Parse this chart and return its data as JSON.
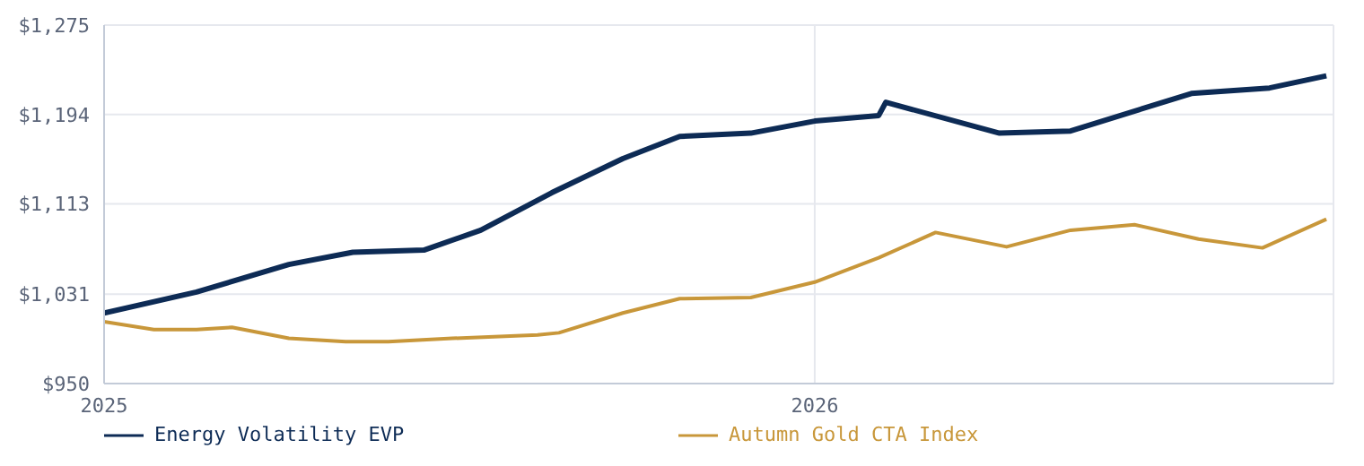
{
  "chart_data": {
    "type": "line",
    "xlim": [
      2025,
      2026.73
    ],
    "xticks": [
      2025,
      2026
    ],
    "ylim": [
      950,
      1275
    ],
    "yticks": [
      {
        "value": 950,
        "label": "$950"
      },
      {
        "value": 1031,
        "label": "$1,031"
      },
      {
        "value": 1113,
        "label": "$1,113"
      },
      {
        "value": 1194,
        "label": "$1,194"
      },
      {
        "value": 1275,
        "label": "$1,275"
      }
    ],
    "grid": true,
    "legend": "bottom",
    "marker": "none",
    "line_style": "solid",
    "series": [
      {
        "name": "Energy Volatility EVP",
        "color": "#0d2b55",
        "x": [
          2025.0,
          2025.13,
          2025.26,
          2025.35,
          2025.45,
          2025.53,
          2025.63,
          2025.73,
          2025.81,
          2025.91,
          2026.0,
          2026.09,
          2026.1,
          2026.26,
          2026.36,
          2026.53,
          2026.64,
          2026.72
        ],
        "values": [
          1014,
          1033,
          1058,
          1069,
          1071,
          1089,
          1123,
          1154,
          1174,
          1177,
          1188,
          1193,
          1205,
          1177,
          1179,
          1213,
          1218,
          1229
        ]
      },
      {
        "name": "Autumn Gold CTA Index",
        "color": "#c8973a",
        "x": [
          2025.0,
          2025.07,
          2025.13,
          2025.18,
          2025.26,
          2025.34,
          2025.4,
          2025.49,
          2025.61,
          2025.64,
          2025.73,
          2025.81,
          2025.91,
          2026.0,
          2026.09,
          2026.17,
          2026.27,
          2026.36,
          2026.45,
          2026.54,
          2026.63,
          2026.72
        ],
        "values": [
          1006,
          999,
          999,
          1001,
          991,
          988,
          988,
          991,
          994,
          996,
          1014,
          1027,
          1028,
          1042,
          1064,
          1087,
          1074,
          1089,
          1094,
          1081,
          1073,
          1099
        ]
      }
    ]
  }
}
